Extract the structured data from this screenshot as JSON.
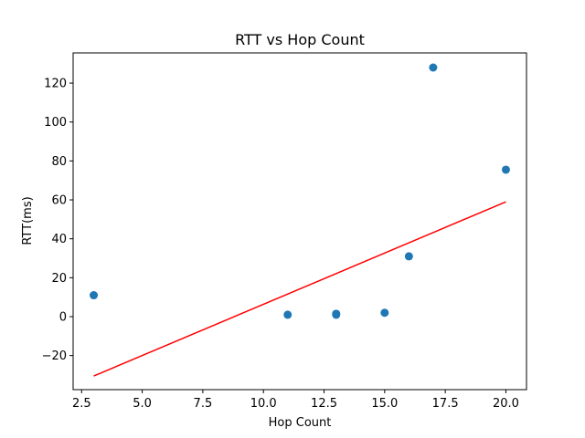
{
  "chart_data": {
    "type": "scatter",
    "title": "RTT vs Hop Count",
    "xlabel": "Hop Count",
    "ylabel": "RTT(ms)",
    "xlim": [
      2.15,
      20.85
    ],
    "ylim": [
      -37.5,
      135.5
    ],
    "xticks": [
      2.5,
      5.0,
      7.5,
      10.0,
      12.5,
      15.0,
      17.5,
      20.0
    ],
    "xtick_labels": [
      "2.5",
      "5.0",
      "7.5",
      "10.0",
      "12.5",
      "15.0",
      "17.5",
      "20.0"
    ],
    "yticks": [
      -20,
      0,
      20,
      40,
      60,
      80,
      100,
      120
    ],
    "ytick_labels": [
      "−20",
      "0",
      "20",
      "40",
      "60",
      "80",
      "100",
      "120"
    ],
    "grid": false,
    "series": [
      {
        "kind": "scatter",
        "color": "#1f77b4",
        "points": [
          {
            "x": 3,
            "y": 11.0
          },
          {
            "x": 11,
            "y": 1.0
          },
          {
            "x": 13,
            "y": 1.5
          },
          {
            "x": 13,
            "y": 1.0
          },
          {
            "x": 15,
            "y": 2.0
          },
          {
            "x": 16,
            "y": 31.0
          },
          {
            "x": 17,
            "y": 128.0
          },
          {
            "x": 20,
            "y": 75.5
          }
        ]
      },
      {
        "kind": "line",
        "color": "#ff0000",
        "points": [
          {
            "x": 3,
            "y": -30.5
          },
          {
            "x": 20,
            "y": 59.0
          }
        ]
      }
    ]
  }
}
